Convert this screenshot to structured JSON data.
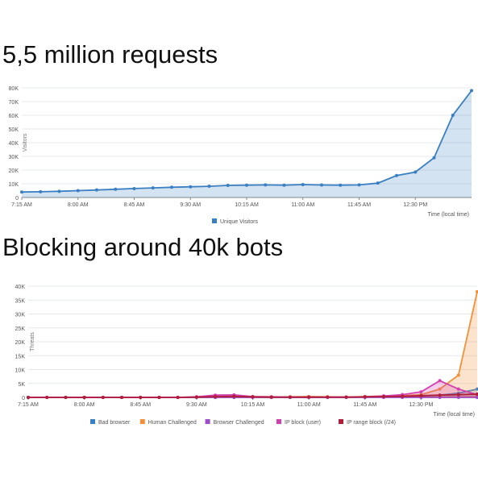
{
  "headings": {
    "first": "5,5 million requests",
    "second": "Blocking around 40k bots"
  },
  "chart_data": [
    {
      "type": "area",
      "ylabel": "Visitors",
      "xlabel": "Time (local time)",
      "ylim": [
        0,
        80000
      ],
      "y_ticks": [
        "0",
        "10K",
        "20K",
        "30K",
        "40K",
        "50K",
        "60K",
        "70K",
        "80K"
      ],
      "x_ticks": [
        "7:15 AM",
        "8:00 AM",
        "8:45 AM",
        "9:30 AM",
        "10:15 AM",
        "11:00 AM",
        "11:45 AM",
        "12:30 PM"
      ],
      "x_tick_index": [
        0,
        3,
        6,
        9,
        12,
        15,
        18,
        21
      ],
      "grid": true,
      "legend_position": "bottom",
      "series": [
        {
          "name": "Unique Visitors",
          "color": "#3a7fc1",
          "values": [
            4000,
            4200,
            4500,
            5000,
            5500,
            6000,
            6500,
            7000,
            7500,
            7800,
            8200,
            8800,
            9000,
            9200,
            9000,
            9400,
            9100,
            9000,
            9200,
            10500,
            16000,
            18500,
            29000,
            60000,
            78000
          ]
        }
      ]
    },
    {
      "type": "area",
      "ylabel": "Threats",
      "xlabel": "Time (local time)",
      "ylim": [
        0,
        40000
      ],
      "y_ticks": [
        "0",
        "5K",
        "10K",
        "15K",
        "20K",
        "25K",
        "30K",
        "35K",
        "40K"
      ],
      "x_ticks": [
        "7:15 AM",
        "8:00 AM",
        "8:45 AM",
        "9:30 AM",
        "10:15 AM",
        "11:00 AM",
        "11:45 AM",
        "12:30 PM"
      ],
      "x_tick_index": [
        0,
        3,
        6,
        9,
        12,
        15,
        18,
        21
      ],
      "grid": true,
      "legend_position": "bottom",
      "series": [
        {
          "name": "Bad browser",
          "color": "#3a7fc1",
          "values": [
            0,
            0,
            0,
            0,
            0,
            0,
            0,
            0,
            0,
            0,
            0,
            0,
            0,
            0,
            0,
            0,
            0,
            0,
            100,
            200,
            300,
            500,
            800,
            1500,
            3000
          ]
        },
        {
          "name": "Human Challenged",
          "color": "#f0913a",
          "values": [
            0,
            0,
            0,
            0,
            0,
            0,
            0,
            0,
            0,
            0,
            0,
            0,
            0,
            0,
            200,
            300,
            200,
            100,
            300,
            500,
            600,
            1000,
            3000,
            8000,
            38000
          ]
        },
        {
          "name": "Browser Challenged",
          "color": "#9b4dca",
          "values": [
            0,
            0,
            0,
            0,
            0,
            0,
            0,
            0,
            0,
            0,
            0,
            0,
            0,
            0,
            0,
            0,
            0,
            0,
            0,
            0,
            0,
            0,
            0,
            0,
            0
          ]
        },
        {
          "name": "IP block (user)",
          "color": "#d43fb0",
          "values": [
            0,
            0,
            0,
            0,
            0,
            0,
            0,
            0,
            0,
            200,
            800,
            900,
            300,
            200,
            100,
            100,
            100,
            100,
            200,
            500,
            1000,
            2000,
            6000,
            3000,
            1000
          ]
        },
        {
          "name": "IP range block (/24)",
          "color": "#b01e3c",
          "values": [
            0,
            0,
            0,
            0,
            0,
            0,
            0,
            0,
            0,
            100,
            300,
            400,
            200,
            100,
            100,
            100,
            100,
            100,
            200,
            300,
            400,
            600,
            800,
            1000,
            1200
          ]
        }
      ]
    }
  ]
}
